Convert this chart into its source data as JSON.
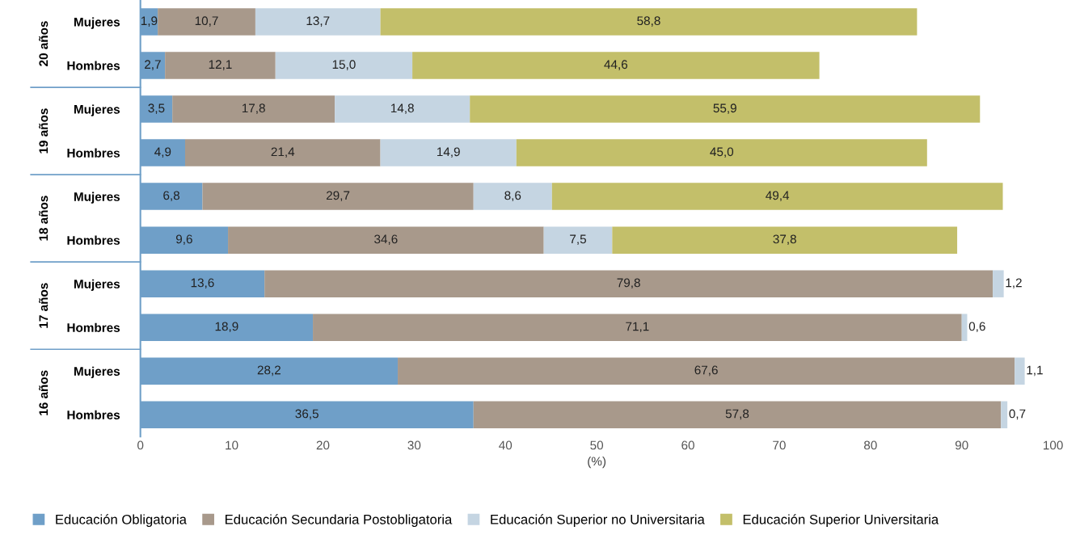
{
  "chart_data": {
    "type": "bar",
    "orientation": "horizontal",
    "stacked": true,
    "xlabel": "(%)",
    "categories": [
      "Mujeres",
      "Hombres",
      "Mujeres",
      "Hombres",
      "Mujeres",
      "Hombres",
      "Mujeres",
      "Hombres",
      "Mujeres",
      "Hombres"
    ],
    "annotations": [
      "20 años",
      "19 años",
      "18 años",
      "17 años",
      "16 años"
    ],
    "series": [
      {
        "name": "Educación Obligatoria",
        "color": "#6f9fc8",
        "values": [
          1.9,
          2.7,
          3.5,
          4.9,
          6.8,
          9.6,
          13.6,
          18.9,
          28.2,
          36.5
        ],
        "value_labels": [
          "1,9",
          "2,7",
          "3,5",
          "4,9",
          "6,8",
          "9,6",
          "13,6",
          "18,9",
          "28,2",
          "36,5"
        ]
      },
      {
        "name": "Educación Secundaria Postobligatoria",
        "color": "#a8998b",
        "values": [
          10.7,
          12.1,
          17.8,
          21.4,
          29.7,
          34.6,
          79.8,
          71.1,
          67.6,
          57.8
        ],
        "value_labels": [
          "10,7",
          "12,1",
          "17,8",
          "21,4",
          "29,7",
          "34,6",
          "79,8",
          "71,1",
          "67,6",
          "57,8"
        ]
      },
      {
        "name": "Educación Superior no Universitaria",
        "color": "#c5d5e2",
        "values": [
          13.7,
          15.0,
          14.8,
          14.9,
          8.6,
          7.5,
          1.2,
          0.6,
          1.1,
          0.7
        ],
        "value_labels": [
          "13,7",
          "15,0",
          "14,8",
          "14,9",
          "8,6",
          "7,5",
          "1,2",
          "0,6",
          "1,1",
          "0,7"
        ]
      },
      {
        "name": "Educación Superior Universitaria",
        "color": "#c3bf6a",
        "values": [
          58.8,
          44.6,
          55.9,
          45.0,
          49.4,
          37.8,
          null,
          null,
          null,
          null
        ],
        "value_labels": [
          "58,8",
          "44,6",
          "55,9",
          "45,0",
          "49,4",
          "37,8",
          null,
          null,
          null,
          null
        ]
      }
    ],
    "xlim": [
      0,
      100
    ],
    "xticks": [
      0,
      10,
      20,
      30,
      40,
      50,
      60,
      70,
      80,
      90,
      100
    ],
    "grid": false,
    "legend": "bottom"
  }
}
